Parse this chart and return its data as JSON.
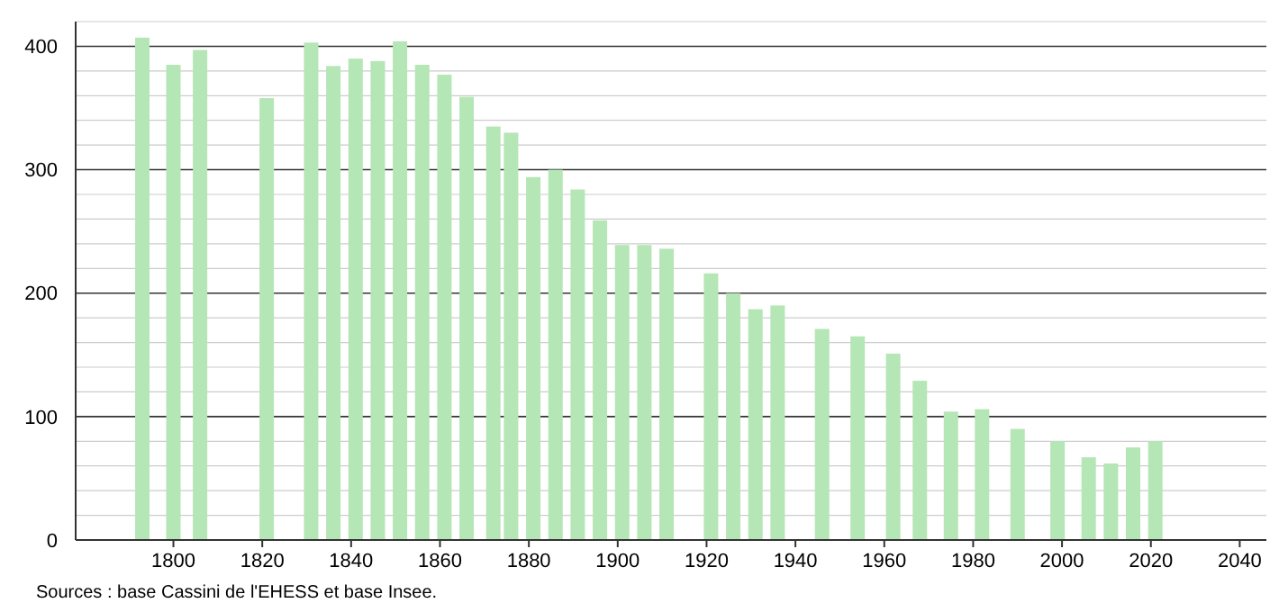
{
  "chart_data": {
    "type": "bar",
    "color": "#b5e6b5",
    "x": [
      1793,
      1800,
      1806,
      1821,
      1831,
      1836,
      1841,
      1846,
      1851,
      1856,
      1861,
      1866,
      1872,
      1876,
      1881,
      1886,
      1891,
      1896,
      1901,
      1906,
      1911,
      1921,
      1926,
      1931,
      1936,
      1946,
      1954,
      1962,
      1968,
      1975,
      1982,
      1990,
      1999,
      2006,
      2011,
      2016,
      2021
    ],
    "values": [
      407,
      385,
      397,
      358,
      403,
      384,
      390,
      388,
      404,
      385,
      377,
      359,
      335,
      330,
      294,
      300,
      284,
      259,
      239,
      239,
      236,
      216,
      200,
      187,
      190,
      171,
      165,
      151,
      129,
      104,
      106,
      90,
      80,
      67,
      62,
      75,
      80
    ],
    "xlim": [
      1778,
      2046
    ],
    "xticks": [
      1800,
      1820,
      1840,
      1860,
      1880,
      1900,
      1920,
      1940,
      1960,
      1980,
      2000,
      2020,
      2040
    ],
    "ylim": [
      0,
      420
    ],
    "yticks": [
      0,
      {
        "value": 20,
        "label": null
      },
      {
        "value": 40,
        "label": null
      },
      {
        "value": 60,
        "label": null
      },
      {
        "value": 80,
        "label": null
      },
      100,
      {
        "value": 120,
        "label": null
      },
      {
        "value": 140,
        "label": null
      },
      {
        "value": 160,
        "label": null
      },
      {
        "value": 180,
        "label": null
      },
      200,
      {
        "value": 220,
        "label": null
      },
      {
        "value": 240,
        "label": null
      },
      {
        "value": 260,
        "label": null
      },
      {
        "value": 280,
        "label": null
      },
      300,
      {
        "value": 320,
        "label": null
      },
      {
        "value": 340,
        "label": null
      },
      {
        "value": 360,
        "label": null
      },
      {
        "value": 380,
        "label": null
      },
      400,
      {
        "value": 420,
        "label": null
      }
    ],
    "grid": "y",
    "annotations": [
      "Sources : base Cassini de l'EHESS et base Insee."
    ]
  }
}
